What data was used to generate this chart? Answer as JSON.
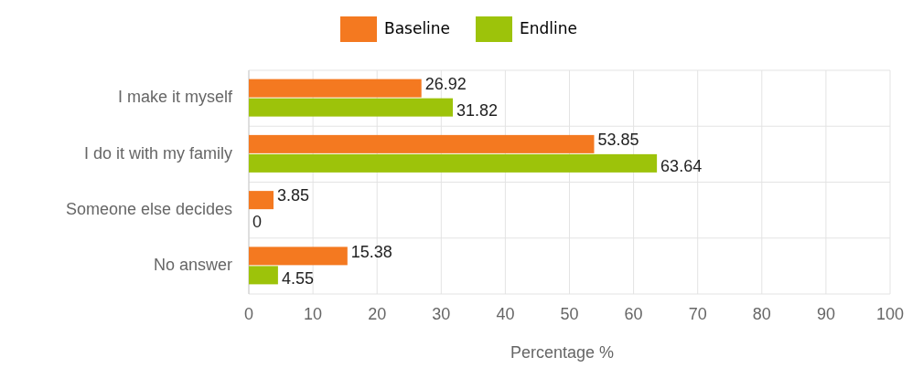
{
  "chart_data": {
    "type": "bar",
    "orientation": "horizontal",
    "xlabel": "Percentage %",
    "categories": [
      "I make it myself",
      "I do it with my family",
      "Someone else decides",
      "No answer"
    ],
    "series": [
      {
        "name": "Baseline",
        "color": "#f47920",
        "values": [
          26.92,
          53.85,
          3.85,
          15.38
        ]
      },
      {
        "name": "Endline",
        "color": "#9dc30a",
        "values": [
          31.82,
          63.64,
          0,
          4.55
        ]
      }
    ],
    "xlim": [
      0,
      100
    ],
    "xticks": [
      0,
      10,
      20,
      30,
      40,
      50,
      60,
      70,
      80,
      90,
      100
    ],
    "grid": true,
    "legend": "top",
    "data_labels": true
  }
}
